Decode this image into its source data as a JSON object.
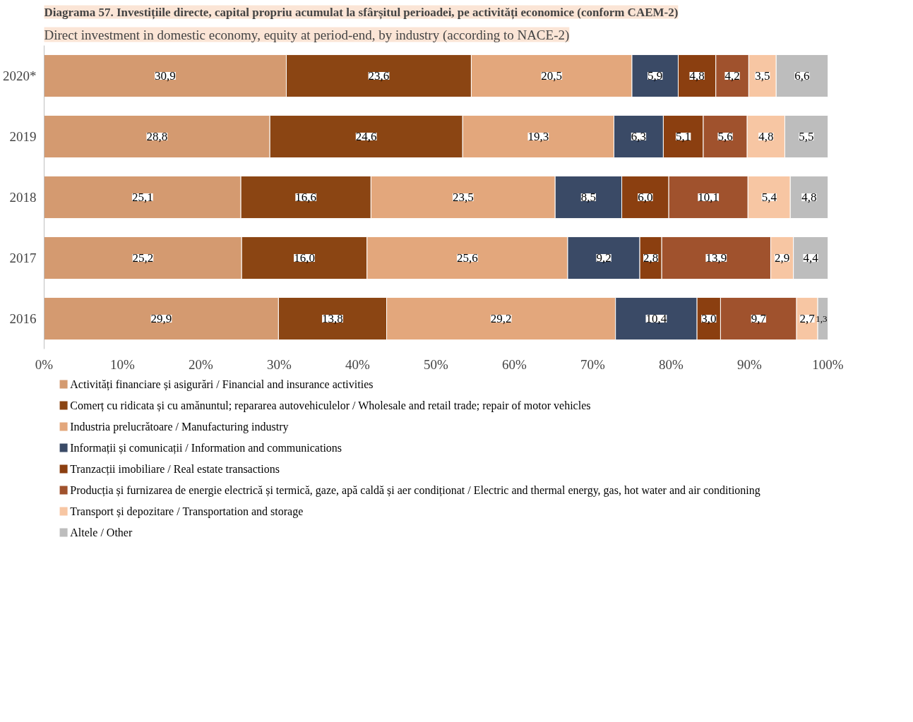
{
  "chart_data": {
    "type": "bar",
    "orientation": "horizontal",
    "stacked": true,
    "title": "Diagrama 57. Investițiile directe, capital propriu acumulat la sfârșitul perioadei, pe activități economice (conform CAEM-2)",
    "subtitle": "Direct investment in domestic economy, equity at period-end, by industry (according to NACE-2)",
    "categories": [
      "2020*",
      "2019",
      "2018",
      "2017",
      "2016"
    ],
    "xlim": [
      0,
      100
    ],
    "xticks": [
      {
        "value": 0,
        "label": "0%"
      },
      {
        "value": 10,
        "label": "10%"
      },
      {
        "value": 20,
        "label": "20%"
      },
      {
        "value": 30,
        "label": "30%"
      },
      {
        "value": 40,
        "label": "40%"
      },
      {
        "value": 50,
        "label": "50%"
      },
      {
        "value": 60,
        "label": "60%"
      },
      {
        "value": 70,
        "label": "70%"
      },
      {
        "value": 80,
        "label": "80%"
      },
      {
        "value": 90,
        "label": "90%"
      },
      {
        "value": 100,
        "label": "100%"
      }
    ],
    "grid": false,
    "legend": "bottom",
    "series": [
      {
        "name": "Activități financiare și asigurări / Financial and insurance activities",
        "color": "#d49a70",
        "values": [
          30.9,
          28.8,
          25.1,
          25.2,
          29.9
        ],
        "value_labels": [
          "30,9",
          "28,8",
          "25,1",
          "25,2",
          "29,9"
        ]
      },
      {
        "name": "Comerț cu ridicata și cu amănuntul; repararea autovehiculelor / Wholesale and retail trade; repair of motor vehicles",
        "color": "#8b4513",
        "values": [
          23.6,
          24.6,
          16.6,
          16.0,
          13.8
        ],
        "value_labels": [
          "23,6",
          "24,6",
          "16,6",
          "16,0",
          "13,8"
        ]
      },
      {
        "name": "Industria prelucrătoare / Manufacturing industry",
        "color": "#e3a77c",
        "values": [
          20.5,
          19.3,
          23.5,
          25.6,
          29.2
        ],
        "value_labels": [
          "20,5",
          "19,3",
          "23,5",
          "25,6",
          "29,2"
        ]
      },
      {
        "name": "Informații și comunicații / Information and communications",
        "color": "#3a4a66",
        "values": [
          5.9,
          6.3,
          8.5,
          9.2,
          10.4
        ],
        "value_labels": [
          "5,9",
          "6,3",
          "8,5",
          "9,2",
          "10,4"
        ]
      },
      {
        "name": "Tranzacții imobiliare / Real estate transactions",
        "color": "#8b3f10",
        "values": [
          4.8,
          5.1,
          6.0,
          2.8,
          3.0
        ],
        "value_labels": [
          "4,8",
          "5,1",
          "6,0",
          "2,8",
          "3,0"
        ]
      },
      {
        "name": "Producția și furnizarea de energie electrică și termică, gaze, apă caldă și aer condiționat / Electric and thermal energy, gas, hot water and air conditioning",
        "color": "#a0522d",
        "values": [
          4.2,
          5.6,
          10.1,
          13.9,
          9.7
        ],
        "value_labels": [
          "4,2",
          "5,6",
          "10,1",
          "13,9",
          "9,7"
        ]
      },
      {
        "name": "Transport și depozitare / Transportation and storage",
        "color": "#f7c6a3",
        "values": [
          3.5,
          4.8,
          5.4,
          2.9,
          2.7
        ],
        "value_labels": [
          "3,5",
          "4,8",
          "5,4",
          "2,9",
          "2,7"
        ]
      },
      {
        "name": "Altele / Other",
        "color": "#bdbdbd",
        "values": [
          6.6,
          5.5,
          4.8,
          4.4,
          1.3
        ],
        "value_labels": [
          "6,6",
          "5,5",
          "4,8",
          "4,4",
          "1,3"
        ]
      }
    ]
  }
}
